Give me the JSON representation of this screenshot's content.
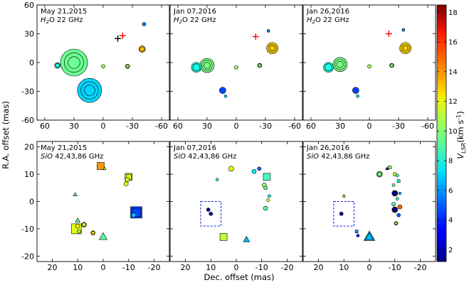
{
  "figure": {
    "ylabel": "R.A. offset (mas)",
    "xlabel": "Dec. offset (mas)",
    "colorbar": {
      "label": "V",
      "label_sub": "LSR",
      "label_unit": "(km s",
      "label_exp": "-1",
      "label_close": ")",
      "vmin": 1.2,
      "vmax": 18.5,
      "ticks": [
        "2",
        "4",
        "6",
        "8",
        "10",
        "12",
        "14",
        "16",
        "18"
      ]
    }
  },
  "chart_data": [
    {
      "type": "scatter",
      "panel": "top-1",
      "date": "May 21,2015",
      "band_italic": "H",
      "band_sub": "2",
      "band_rest": "O 22 GHz",
      "xlim": [
        68,
        -68
      ],
      "ylim": [
        -60,
        60
      ],
      "xticks": [
        "60",
        "30",
        "0",
        "-30",
        "-60"
      ],
      "yticks": [
        "60",
        "30",
        "0",
        "-30",
        "-60"
      ],
      "points": [
        {
          "x": 30,
          "y": 0,
          "v": 9.5,
          "s": 19,
          "shape": "circle",
          "rings": 3
        },
        {
          "x": 14,
          "y": -29,
          "v": 7.0,
          "s": 17,
          "shape": "circle",
          "rings": 3
        },
        {
          "x": 47,
          "y": -3,
          "v": 8.4,
          "s": 4,
          "shape": "circle",
          "rings": 2
        },
        {
          "x": 0,
          "y": -4,
          "v": 10.5,
          "s": 2.5,
          "shape": "circle"
        },
        {
          "x": -25,
          "y": -4,
          "v": 10.3,
          "s": 3,
          "shape": "circle",
          "rings": 2
        },
        {
          "x": -40,
          "y": 14,
          "v": 13.0,
          "s": 4.5,
          "shape": "circle",
          "rings": 2
        },
        {
          "x": -42,
          "y": 40,
          "v": 5.5,
          "s": 2.5,
          "shape": "circle"
        }
      ],
      "crosses": [
        {
          "x": -15,
          "y": 25,
          "color": "#000000"
        },
        {
          "x": -20,
          "y": 28,
          "color": "#ff0000"
        }
      ]
    },
    {
      "type": "scatter",
      "panel": "top-2",
      "date": "Jan 07,2016",
      "band_italic": "H",
      "band_sub": "2",
      "band_rest": "O 22 GHz",
      "xlim": [
        68,
        -68
      ],
      "ylim": [
        -60,
        60
      ],
      "xticks": [
        "60",
        "30",
        "0",
        "-30",
        "-60"
      ],
      "yticks": [
        "60",
        "30",
        "0",
        "-30",
        "-60"
      ],
      "points": [
        {
          "x": 30,
          "y": -3,
          "v": 9.8,
          "s": 10,
          "shape": "circle",
          "rings": 3
        },
        {
          "x": 41,
          "y": -5,
          "v": 8.2,
          "s": 7,
          "shape": "circle",
          "rings": 2
        },
        {
          "x": 14,
          "y": -29,
          "v": 4.5,
          "s": 4.5,
          "shape": "circle"
        },
        {
          "x": 11,
          "y": -35,
          "v": 7.0,
          "s": 2,
          "shape": "circle"
        },
        {
          "x": 0,
          "y": -5,
          "v": 10.6,
          "s": 2.5,
          "shape": "circle"
        },
        {
          "x": -24,
          "y": -3,
          "v": 10.4,
          "s": 3,
          "shape": "circle",
          "rings": 2
        },
        {
          "x": -37,
          "y": 15,
          "v": 12.7,
          "s": 8,
          "shape": "circle",
          "rings": 3
        },
        {
          "x": -33,
          "y": 33,
          "v": 5.5,
          "s": 2,
          "shape": "circle"
        }
      ],
      "crosses": [
        {
          "x": -20,
          "y": 27,
          "color": "#ff0000"
        }
      ]
    },
    {
      "type": "scatter",
      "panel": "top-3",
      "date": "Jan 26,2016",
      "band_italic": "H",
      "band_sub": "2",
      "band_rest": "O 22 GHz",
      "xlim": [
        68,
        -68
      ],
      "ylim": [
        -60,
        60
      ],
      "xticks": [
        "60",
        "30",
        "0",
        "-30",
        "-60"
      ],
      "yticks": [
        "60",
        "30",
        "0",
        "-30",
        "-60"
      ],
      "points": [
        {
          "x": 30,
          "y": -2,
          "v": 9.8,
          "s": 10,
          "shape": "circle",
          "rings": 3
        },
        {
          "x": 42,
          "y": -5,
          "v": 8.2,
          "s": 7,
          "shape": "circle",
          "rings": 2
        },
        {
          "x": 14,
          "y": -29,
          "v": 4.5,
          "s": 4.5,
          "shape": "circle"
        },
        {
          "x": 12,
          "y": -35,
          "v": 7.0,
          "s": 2,
          "shape": "circle"
        },
        {
          "x": 0,
          "y": -4,
          "v": 10.6,
          "s": 2.5,
          "shape": "circle"
        },
        {
          "x": -23,
          "y": -3,
          "v": 10.4,
          "s": 3,
          "shape": "circle",
          "rings": 2
        },
        {
          "x": -37,
          "y": 15,
          "v": 12.7,
          "s": 8,
          "shape": "circle",
          "rings": 3
        },
        {
          "x": -35,
          "y": 34,
          "v": 5.5,
          "s": 2,
          "shape": "circle"
        }
      ],
      "crosses": [
        {
          "x": -20,
          "y": 30,
          "color": "#ff0000"
        }
      ]
    },
    {
      "type": "scatter",
      "panel": "bottom-1",
      "date": "May 21,2015",
      "band_italic": "SiO",
      "band_sub": "",
      "band_rest": " 42,43,86 GHz",
      "xlim": [
        26,
        -26
      ],
      "ylim": [
        -22,
        22
      ],
      "xticks": [
        "20",
        "10",
        "0",
        "-10",
        "-20"
      ],
      "yticks": [
        "20",
        "10",
        "0",
        "-10",
        "-20"
      ],
      "points": [
        {
          "x": 1,
          "y": 13,
          "v": 13.8,
          "s": 5,
          "shape": "square"
        },
        {
          "x": -0.5,
          "y": 12,
          "v": 10.6,
          "s": 2,
          "shape": "triangle"
        },
        {
          "x": -10,
          "y": 9,
          "v": 11.5,
          "s": 5,
          "shape": "square",
          "rings": 2
        },
        {
          "x": -9.5,
          "y": 8,
          "v": 11.2,
          "s": 3,
          "shape": "circle"
        },
        {
          "x": -9,
          "y": 6.5,
          "v": 11.8,
          "s": 3,
          "shape": "circle"
        },
        {
          "x": -13,
          "y": -4,
          "v": 4.5,
          "s": 8,
          "shape": "square",
          "rings": 2
        },
        {
          "x": -12,
          "y": -5,
          "v": 6.8,
          "s": 3,
          "shape": "circle"
        },
        {
          "x": 11,
          "y": 2.5,
          "v": 9.6,
          "s": 2.5,
          "shape": "triangle"
        },
        {
          "x": 10,
          "y": -7,
          "v": 9.5,
          "s": 3,
          "shape": "triangle"
        },
        {
          "x": 10.5,
          "y": -10,
          "v": 11.5,
          "s": 7,
          "shape": "square"
        },
        {
          "x": 10,
          "y": -9,
          "v": 12.2,
          "s": 3,
          "shape": "circle"
        },
        {
          "x": 9.5,
          "y": -11,
          "v": 10.5,
          "s": 2.5,
          "shape": "circle"
        },
        {
          "x": 7.5,
          "y": -8.5,
          "v": 11.0,
          "s": 3.5,
          "shape": "circle",
          "rings": 2
        },
        {
          "x": 4,
          "y": -11.5,
          "v": 12.5,
          "s": 3,
          "shape": "circle",
          "rings": 2
        },
        {
          "x": 0,
          "y": -13,
          "v": 9.2,
          "s": 5,
          "shape": "triangle"
        }
      ],
      "boxes": []
    },
    {
      "type": "scatter",
      "panel": "bottom-2",
      "date": "Jan 07,2016",
      "band_italic": "SiO",
      "band_sub": "",
      "band_rest": " 42,43,86 GHz",
      "xlim": [
        26,
        -26
      ],
      "ylim": [
        -22,
        22
      ],
      "xticks": [
        "20",
        "10",
        "0",
        "-10",
        "-20"
      ],
      "yticks": [
        "20",
        "10",
        "0",
        "-10",
        "-20"
      ],
      "points": [
        {
          "x": 2,
          "y": 12,
          "v": 11.8,
          "s": 3.5,
          "shape": "circle"
        },
        {
          "x": 7.5,
          "y": 8,
          "v": 8.5,
          "s": 2,
          "shape": "circle"
        },
        {
          "x": -7,
          "y": 11,
          "v": 7.5,
          "s": 3,
          "shape": "circle"
        },
        {
          "x": -9,
          "y": 12,
          "v": 5.0,
          "s": 2.5,
          "shape": "circle"
        },
        {
          "x": -12,
          "y": 9,
          "v": 8.8,
          "s": 5,
          "shape": "square"
        },
        {
          "x": -11,
          "y": 6,
          "v": 10.5,
          "s": 3,
          "shape": "circle"
        },
        {
          "x": -11.5,
          "y": 5,
          "v": 9.5,
          "s": 2.5,
          "shape": "circle"
        },
        {
          "x": -13,
          "y": 2,
          "v": 7.5,
          "s": 2,
          "shape": "circle"
        },
        {
          "x": -12.5,
          "y": 0.5,
          "v": 11.2,
          "s": 2,
          "shape": "circle"
        },
        {
          "x": -11.5,
          "y": -2.5,
          "v": 9.3,
          "s": 3,
          "shape": "circle"
        },
        {
          "x": 11,
          "y": -3,
          "v": 1.5,
          "s": 2.5,
          "shape": "circle"
        },
        {
          "x": 10,
          "y": -4.5,
          "v": 1.5,
          "s": 2.5,
          "shape": "circle"
        },
        {
          "x": 5,
          "y": -13,
          "v": 11.0,
          "s": 5,
          "shape": "square"
        },
        {
          "x": -4,
          "y": -14,
          "v": 6.3,
          "s": 4,
          "shape": "triangle"
        }
      ],
      "boxes": [
        {
          "x0": 14,
          "x1": 6,
          "y0": -9,
          "y1": 0
        }
      ]
    },
    {
      "type": "scatter",
      "panel": "bottom-3",
      "date": "Jan 26,2016",
      "band_italic": "SiO",
      "band_sub": "",
      "band_rest": " 42,43,86 GHz",
      "xlim": [
        26,
        -26
      ],
      "ylim": [
        -22,
        22
      ],
      "xticks": [
        "20",
        "10",
        "0",
        "-10",
        "-20"
      ],
      "yticks": [
        "20",
        "10",
        "0",
        "-10",
        "-20"
      ],
      "points": [
        {
          "x": -4,
          "y": 10,
          "v": 9.8,
          "s": 4,
          "shape": "circle",
          "rings": 2
        },
        {
          "x": -7,
          "y": 12,
          "v": 2.0,
          "s": 2,
          "shape": "triangle"
        },
        {
          "x": -8,
          "y": 12.5,
          "v": 10.0,
          "s": 2,
          "shape": "square"
        },
        {
          "x": -10,
          "y": 10,
          "v": 11.0,
          "s": 2.5,
          "shape": "circle"
        },
        {
          "x": -11,
          "y": 9.5,
          "v": 9.0,
          "s": 2,
          "shape": "circle"
        },
        {
          "x": -11.5,
          "y": 7.5,
          "v": 8.0,
          "s": 2,
          "shape": "square"
        },
        {
          "x": -9.5,
          "y": 6,
          "v": 9.5,
          "s": 2,
          "shape": "circle"
        },
        {
          "x": -10,
          "y": 3,
          "v": 1.5,
          "s": 4,
          "shape": "circle",
          "rings": 2
        },
        {
          "x": -11,
          "y": 1,
          "v": 8.5,
          "s": 2,
          "shape": "circle"
        },
        {
          "x": -12,
          "y": 3,
          "v": 6.3,
          "s": 1.8,
          "shape": "circle"
        },
        {
          "x": -9.5,
          "y": -1,
          "v": 9.0,
          "s": 2.5,
          "shape": "circle"
        },
        {
          "x": -10,
          "y": -3,
          "v": 1.5,
          "s": 4,
          "shape": "circle",
          "rings": 2
        },
        {
          "x": -12,
          "y": -2,
          "v": 14.5,
          "s": 3,
          "shape": "circle"
        },
        {
          "x": -11.5,
          "y": -5,
          "v": 5.0,
          "s": 2.5,
          "shape": "circle"
        },
        {
          "x": -10.5,
          "y": -8,
          "v": 10.8,
          "s": 2.5,
          "shape": "circle",
          "rings": 2
        },
        {
          "x": 10,
          "y": 2,
          "v": 13.0,
          "s": 2,
          "shape": "triangle"
        },
        {
          "x": 11,
          "y": -4.5,
          "v": 1.5,
          "s": 2.5,
          "shape": "circle"
        },
        {
          "x": 5,
          "y": -11,
          "v": 6.0,
          "s": 2,
          "shape": "square"
        },
        {
          "x": 4.5,
          "y": -12.5,
          "v": 3.5,
          "s": 2,
          "shape": "circle"
        },
        {
          "x": 0,
          "y": -13,
          "v": 6.5,
          "s": 7,
          "shape": "triangle",
          "rings": 2
        }
      ],
      "boxes": [
        {
          "x0": 14,
          "x1": 6,
          "y0": -9,
          "y1": 0
        }
      ]
    }
  ]
}
